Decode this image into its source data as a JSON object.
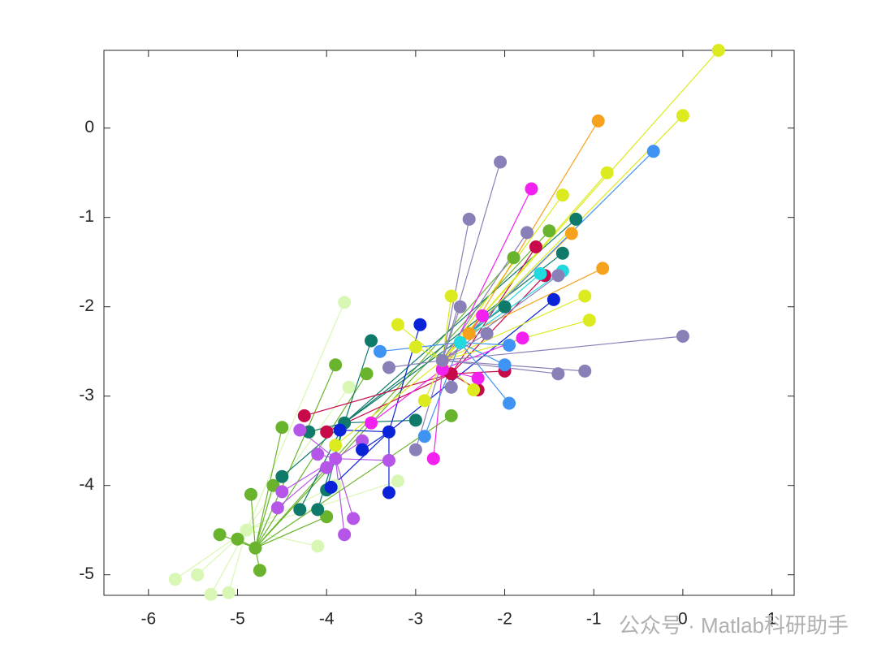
{
  "chart_data": {
    "type": "scatter",
    "xlim": [
      -6.5,
      1.25
    ],
    "ylim": [
      -5.23,
      0.87
    ],
    "xticks": [
      -6,
      -5,
      -4,
      -3,
      -2,
      -1,
      0,
      1
    ],
    "yticks": [
      -5,
      -4,
      -3,
      -2,
      -1,
      0
    ],
    "watermark": "公众号 · Matlab科研助手",
    "series": [
      {
        "color": "#d9f7b4",
        "center_x": -4.9,
        "center_y": -4.5,
        "x": [
          -5.7,
          -5.3,
          -5.1,
          -3.8,
          -3.75,
          -3.2,
          -5.45,
          -4.1,
          -3.9
        ],
        "y": [
          -5.05,
          -5.22,
          -5.2,
          -1.95,
          -2.9,
          -3.95,
          -5.0,
          -4.68,
          -4.0
        ]
      },
      {
        "color": "#6ab42d",
        "center_x": -4.8,
        "center_y": -4.7,
        "x": [
          -5.2,
          -5.0,
          -4.85,
          -4.75,
          -4.5,
          -3.9,
          -3.55,
          -4.0,
          -2.6,
          -1.5,
          -1.9,
          -4.6
        ],
        "y": [
          -4.55,
          -4.6,
          -4.1,
          -4.95,
          -3.35,
          -2.65,
          -2.75,
          -4.35,
          -3.22,
          -1.15,
          -1.45,
          -4.0
        ]
      },
      {
        "color": "#0f7a6a",
        "center_x": -3.8,
        "center_y": -3.3,
        "x": [
          -4.3,
          -4.1,
          -4.5,
          -4.2,
          -3.5,
          -3.0,
          -1.2,
          -1.35,
          -2.0,
          -4.0
        ],
        "y": [
          -4.27,
          -4.27,
          -3.9,
          -3.4,
          -2.38,
          -3.27,
          -1.02,
          -1.4,
          -2.0,
          -4.05
        ]
      },
      {
        "color": "#b556e8",
        "center_x": -3.9,
        "center_y": -3.7,
        "x": [
          -4.3,
          -4.5,
          -4.55,
          -3.8,
          -3.7,
          -4.1,
          -3.3,
          -4.0,
          -3.6
        ],
        "y": [
          -3.38,
          -4.07,
          -4.25,
          -4.55,
          -4.37,
          -3.65,
          -3.72,
          -3.8,
          -3.5
        ]
      },
      {
        "color": "#0a22d8",
        "center_x": -3.3,
        "center_y": -3.4,
        "x": [
          -3.85,
          -3.95,
          -3.3,
          -2.95,
          -1.45,
          -3.6
        ],
        "y": [
          -3.38,
          -4.02,
          -4.08,
          -2.2,
          -1.92,
          -3.6
        ]
      },
      {
        "color": "#c8094a",
        "center_x": -2.6,
        "center_y": -2.75,
        "x": [
          -4.25,
          -2.3,
          -2.0,
          -1.55,
          -1.65,
          -4.0
        ],
        "y": [
          -3.22,
          -2.93,
          -2.72,
          -1.65,
          -1.33,
          -3.4
        ]
      },
      {
        "color": "#f321f0",
        "center_x": -2.7,
        "center_y": -2.7,
        "x": [
          -1.7,
          -1.8,
          -2.8,
          -3.5,
          -2.3,
          -2.25
        ],
        "y": [
          -0.68,
          -2.35,
          -3.7,
          -3.3,
          -2.8,
          -2.1
        ]
      },
      {
        "color": "#dceb1f",
        "center_x": -2.7,
        "center_y": -2.6,
        "x": [
          0.4,
          0.0,
          -0.85,
          -1.35,
          -1.1,
          -1.05,
          -3.2,
          -2.35,
          -2.9,
          -3.0,
          -2.6,
          -3.9
        ],
        "y": [
          0.87,
          0.14,
          -0.5,
          -0.75,
          -1.88,
          -2.15,
          -2.2,
          -2.93,
          -3.05,
          -2.45,
          -1.88,
          -3.55
        ]
      },
      {
        "color": "#f7a21c",
        "center_x": -2.4,
        "center_y": -2.3,
        "x": [
          -0.95,
          -0.9,
          -1.25
        ],
        "y": [
          0.08,
          -1.57,
          -1.18
        ]
      },
      {
        "color": "#3f93f2",
        "center_x": -2.5,
        "center_y": -2.4,
        "x": [
          -0.33,
          -1.95,
          -1.95,
          -2.0,
          -3.4,
          -2.9
        ],
        "y": [
          -0.26,
          -2.43,
          -3.08,
          -2.65,
          -2.5,
          -3.45
        ]
      },
      {
        "color": "#23d9e0",
        "center_x": -2.5,
        "center_y": -2.4,
        "x": [
          -1.6,
          -1.35
        ],
        "y": [
          -1.63,
          -1.6
        ]
      },
      {
        "color": "#8a80b8",
        "center_x": -2.7,
        "center_y": -2.6,
        "x": [
          -2.05,
          -2.4,
          -1.75,
          -1.4,
          0.0,
          -1.4,
          -1.1,
          -3.0,
          -2.5,
          -2.2,
          -3.3,
          -2.6
        ],
        "y": [
          -0.38,
          -1.02,
          -1.17,
          -1.65,
          -2.33,
          -2.75,
          -2.72,
          -3.6,
          -2.0,
          -2.3,
          -2.68,
          -2.9
        ]
      }
    ]
  }
}
